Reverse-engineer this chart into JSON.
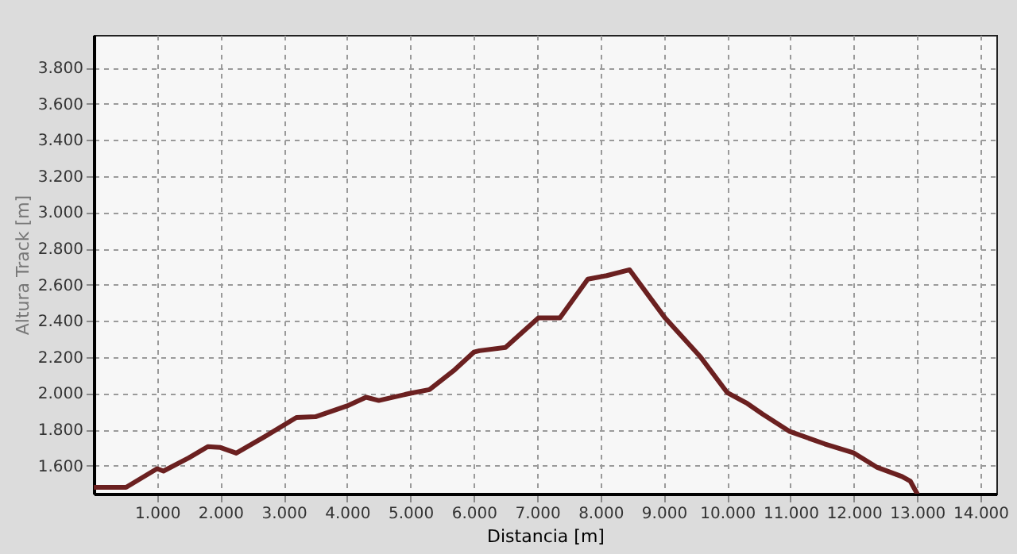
{
  "chart_data": {
    "type": "line",
    "xlabel": "Distancia [m]",
    "ylabel": "Altura Track [m]",
    "x": [
      0,
      510,
      1000,
      1100,
      1500,
      1800,
      2000,
      2250,
      2700,
      3200,
      3500,
      4000,
      4300,
      4500,
      5000,
      5300,
      5700,
      6000,
      6090,
      6500,
      7020,
      7360,
      7800,
      8100,
      8460,
      8800,
      9020,
      9580,
      10000,
      10320,
      10560,
      10980,
      11540,
      12000,
      12370,
      12760,
      12890,
      13000
    ],
    "series": [
      {
        "color": "#6b2020",
        "values": [
          1480,
          1480,
          1583,
          1570,
          1643,
          1705,
          1700,
          1669,
          1760,
          1866,
          1870,
          1930,
          1978,
          1960,
          2000,
          2020,
          2130,
          2227,
          2235,
          2253,
          2416,
          2416,
          2630,
          2650,
          2682,
          2520,
          2416,
          2200,
          2004,
          1943,
          1885,
          1790,
          1720,
          1670,
          1590,
          1540,
          1515,
          1445
        ]
      }
    ],
    "xlim": [
      0,
      14250
    ],
    "ylim": [
      1445,
      3980
    ],
    "xticks": [
      {
        "value": 1000,
        "label": "1.000"
      },
      {
        "value": 2000,
        "label": "2.000"
      },
      {
        "value": 3000,
        "label": "3.000"
      },
      {
        "value": 4000,
        "label": "4.000"
      },
      {
        "value": 5000,
        "label": "5.000"
      },
      {
        "value": 6000,
        "label": "6.000"
      },
      {
        "value": 7000,
        "label": "7.000"
      },
      {
        "value": 8000,
        "label": "8.000"
      },
      {
        "value": 9000,
        "label": "9.000"
      },
      {
        "value": 10000,
        "label": "10.000"
      },
      {
        "value": 11000,
        "label": "11.000"
      },
      {
        "value": 12000,
        "label": "12.000"
      },
      {
        "value": 13000,
        "label": "13.000"
      },
      {
        "value": 14000,
        "label": "14.000"
      }
    ],
    "yticks": [
      {
        "value": 1600,
        "label": "1.600"
      },
      {
        "value": 1800,
        "label": "1.800"
      },
      {
        "value": 2000,
        "label": "2.000"
      },
      {
        "value": 2200,
        "label": "2.200"
      },
      {
        "value": 2400,
        "label": "2.400"
      },
      {
        "value": 2600,
        "label": "2.600"
      },
      {
        "value": 2800,
        "label": "2.800"
      },
      {
        "value": 3000,
        "label": "3.000"
      },
      {
        "value": 3200,
        "label": "3.200"
      },
      {
        "value": 3400,
        "label": "3.400"
      },
      {
        "value": 3600,
        "label": "3.600"
      },
      {
        "value": 3800,
        "label": "3.800"
      }
    ],
    "grid": true,
    "line_style": "solid",
    "marker": "none"
  }
}
